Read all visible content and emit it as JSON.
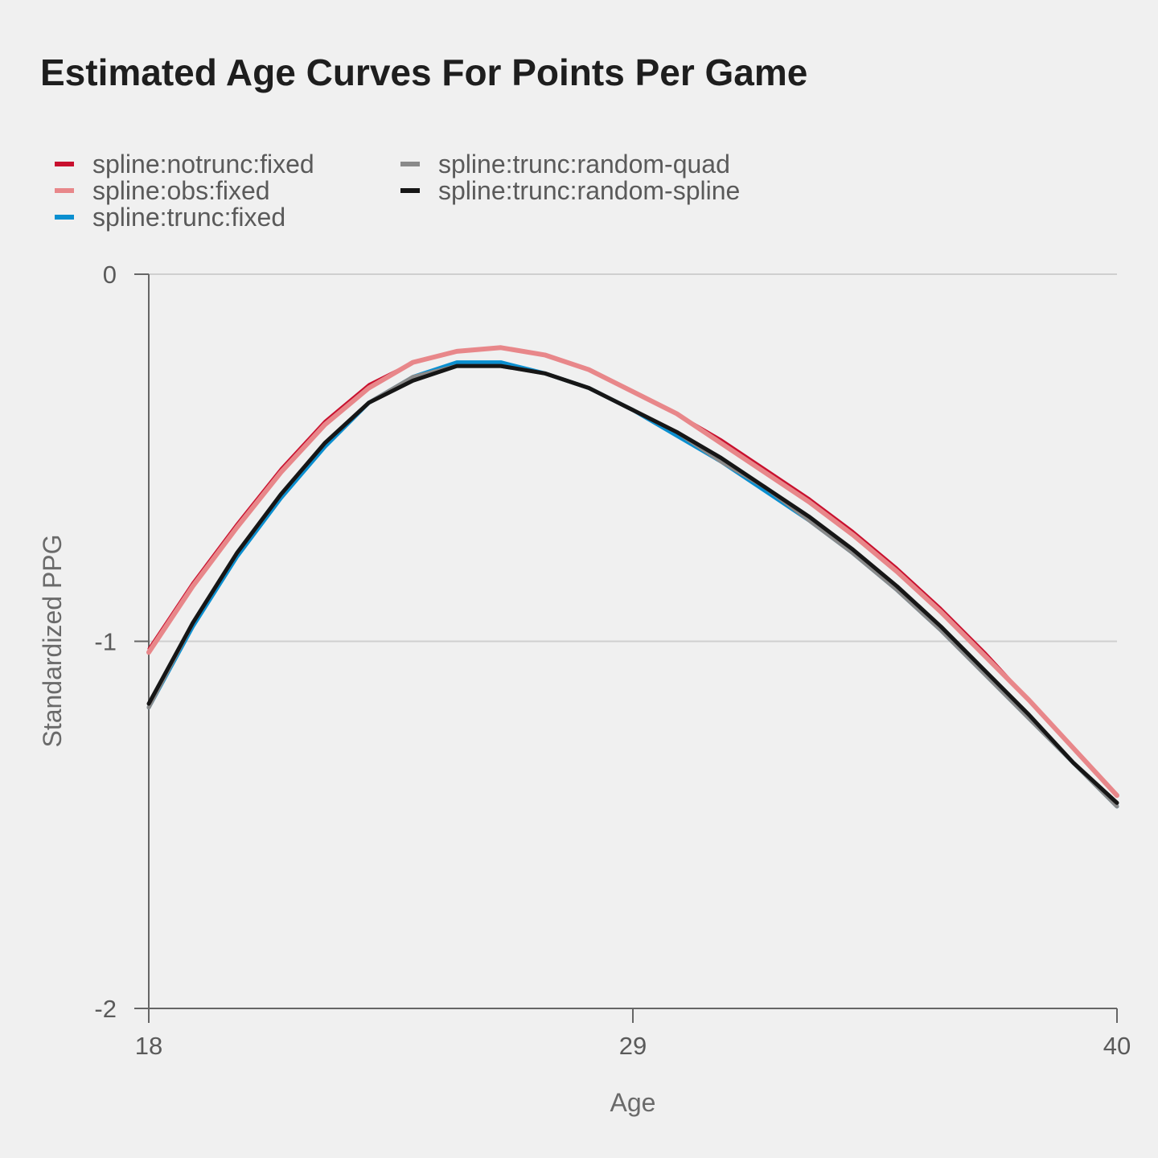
{
  "chart_data": {
    "type": "line",
    "title": "Estimated Age Curves For Points Per Game",
    "xlabel": "Age",
    "ylabel": "Standardized PPG",
    "xlim": [
      18,
      40
    ],
    "ylim": [
      -2,
      0
    ],
    "x_ticks": [
      18,
      29,
      40
    ],
    "y_ticks": [
      0,
      -1,
      -2
    ],
    "grid": "horizontal",
    "legend_position": "top-left",
    "x": [
      18,
      19,
      20,
      21,
      22,
      23,
      24,
      25,
      26,
      27,
      28,
      29,
      30,
      31,
      32,
      33,
      34,
      35,
      36,
      37,
      38,
      39,
      40
    ],
    "series": [
      {
        "name": "spline:notrunc:fixed",
        "color": "#c8102e",
        "values": [
          -1.02,
          -0.84,
          -0.68,
          -0.53,
          -0.4,
          -0.3,
          -0.24,
          -0.21,
          -0.2,
          -0.22,
          -0.26,
          -0.32,
          -0.38,
          -0.45,
          -0.53,
          -0.61,
          -0.7,
          -0.8,
          -0.91,
          -1.03,
          -1.16,
          -1.29,
          -1.42
        ]
      },
      {
        "name": "spline:obs:fixed",
        "color": "#e8878a",
        "values": [
          -1.03,
          -0.85,
          -0.69,
          -0.54,
          -0.41,
          -0.31,
          -0.24,
          -0.21,
          -0.2,
          -0.22,
          -0.26,
          -0.32,
          -0.38,
          -0.46,
          -0.54,
          -0.62,
          -0.71,
          -0.81,
          -0.92,
          -1.04,
          -1.16,
          -1.29,
          -1.42
        ]
      },
      {
        "name": "spline:trunc:fixed",
        "color": "#0a8fd0",
        "values": [
          -1.18,
          -0.96,
          -0.77,
          -0.61,
          -0.47,
          -0.35,
          -0.28,
          -0.24,
          -0.24,
          -0.27,
          -0.31,
          -0.37,
          -0.44,
          -0.51,
          -0.59,
          -0.67,
          -0.76,
          -0.86,
          -0.97,
          -1.09,
          -1.21,
          -1.33,
          -1.45
        ]
      },
      {
        "name": "spline:trunc:random-quad",
        "color": "#8a8a8a",
        "values": [
          -1.18,
          -0.95,
          -0.76,
          -0.6,
          -0.46,
          -0.35,
          -0.28,
          -0.25,
          -0.25,
          -0.27,
          -0.31,
          -0.37,
          -0.43,
          -0.51,
          -0.58,
          -0.67,
          -0.76,
          -0.86,
          -0.97,
          -1.09,
          -1.21,
          -1.33,
          -1.45
        ]
      },
      {
        "name": "spline:trunc:random-spline",
        "color": "#161616",
        "values": [
          -1.17,
          -0.95,
          -0.76,
          -0.6,
          -0.46,
          -0.35,
          -0.29,
          -0.25,
          -0.25,
          -0.27,
          -0.31,
          -0.37,
          -0.43,
          -0.5,
          -0.58,
          -0.66,
          -0.75,
          -0.85,
          -0.96,
          -1.08,
          -1.2,
          -1.33,
          -1.44
        ]
      }
    ]
  }
}
